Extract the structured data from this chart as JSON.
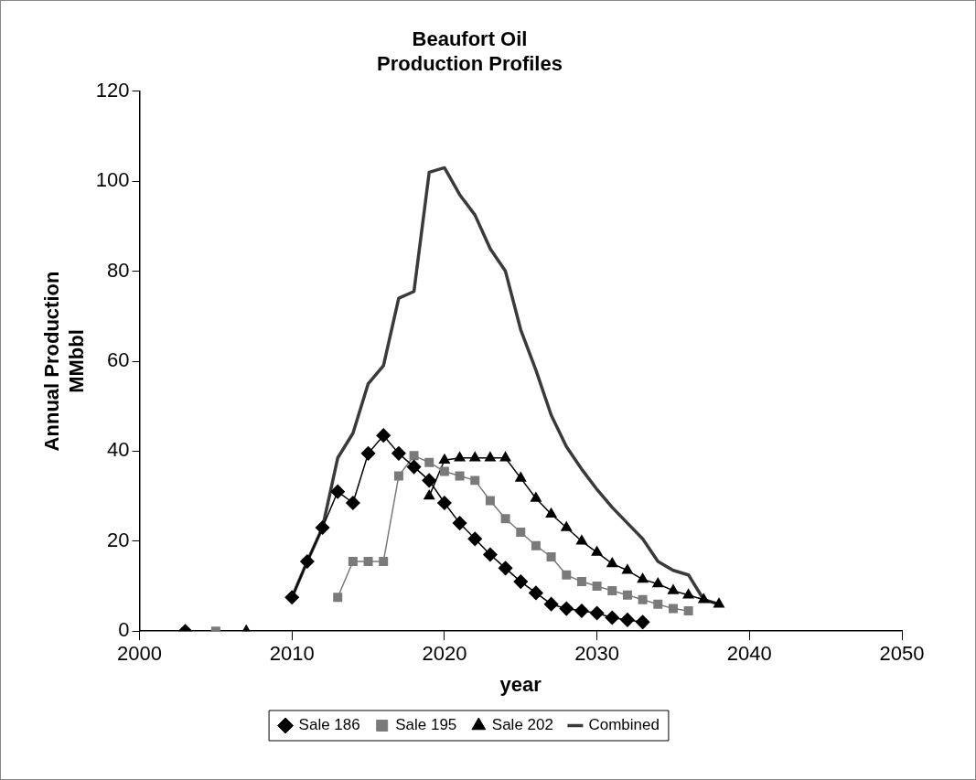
{
  "chart_data": {
    "type": "line",
    "title": [
      "Beaufort Oil",
      "Production Profiles"
    ],
    "xlabel": "year",
    "ylabel": [
      "Annual Production",
      "MMbbl"
    ],
    "x": [
      2003,
      2004,
      2005,
      2006,
      2007,
      2008,
      2009,
      2010,
      2011,
      2012,
      2013,
      2014,
      2015,
      2016,
      2017,
      2018,
      2019,
      2020,
      2021,
      2022,
      2023,
      2024,
      2025,
      2026,
      2027,
      2028,
      2029,
      2030,
      2031,
      2032,
      2033,
      2034,
      2035,
      2036,
      2037,
      2038
    ],
    "series": [
      {
        "name": "Sale 186",
        "color": "#000000",
        "marker": "diamond",
        "values": [
          0,
          null,
          null,
          null,
          null,
          null,
          null,
          7.5,
          15.5,
          23,
          31,
          28.5,
          39.5,
          43.5,
          39.5,
          36.5,
          33.5,
          28.5,
          24,
          20.5,
          17,
          14,
          11,
          8.5,
          6,
          5,
          4.5,
          4,
          3,
          2.5,
          2,
          null,
          null,
          null,
          null,
          null
        ]
      },
      {
        "name": "Sale 195",
        "color": "#7a7a7a",
        "marker": "square",
        "values": [
          null,
          null,
          0,
          null,
          null,
          null,
          null,
          null,
          null,
          null,
          7.5,
          15.5,
          15.5,
          15.5,
          34.5,
          39,
          37.5,
          35.5,
          34.5,
          33.5,
          29,
          25,
          22,
          19,
          16.5,
          12.5,
          11,
          10,
          9,
          8,
          7,
          6,
          5,
          4.5,
          null,
          null
        ]
      },
      {
        "name": "Sale 202",
        "color": "#000000",
        "marker": "triangle",
        "values": [
          null,
          null,
          null,
          null,
          0,
          null,
          null,
          null,
          null,
          null,
          null,
          null,
          null,
          null,
          null,
          null,
          30,
          38,
          38.5,
          38.5,
          38.5,
          38.5,
          34,
          29.5,
          26,
          23,
          20,
          17.5,
          15,
          13.5,
          11.5,
          10.5,
          9,
          8,
          7,
          6
        ]
      },
      {
        "name": "Combined",
        "color": "#3a3a3a",
        "marker": "none",
        "values": [
          null,
          null,
          null,
          null,
          null,
          null,
          null,
          7.5,
          15.5,
          23,
          38.5,
          44,
          55,
          59,
          74,
          75.5,
          102,
          103,
          97,
          92.5,
          85,
          80,
          67,
          58,
          48,
          41,
          36,
          31.5,
          27.5,
          24,
          20.5,
          15.5,
          13.5,
          12.5,
          7,
          6
        ]
      }
    ],
    "xlim": [
      2000,
      2050
    ],
    "xticks": [
      2000,
      2010,
      2020,
      2030,
      2040,
      2050
    ],
    "ylim": [
      0,
      120
    ],
    "yticks": [
      0,
      20,
      40,
      60,
      80,
      100,
      120
    ],
    "grid": false,
    "legend": "bottom"
  }
}
